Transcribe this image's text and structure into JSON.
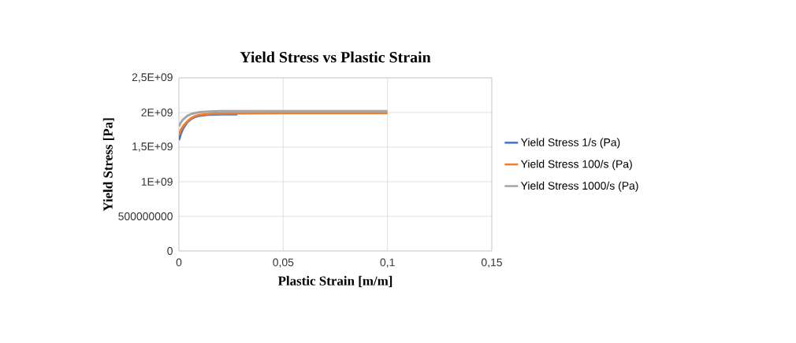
{
  "chart_data": {
    "type": "line",
    "title": "Yield Stress vs Plastic Strain",
    "xlabel": "Plastic Strain [m/m]",
    "ylabel": "Yield Stress [Pa]",
    "xlim": [
      0,
      0.15
    ],
    "xticks": [
      0,
      {
        "value": 0.05,
        "label": "0,05"
      },
      {
        "value": 0.1,
        "label": "0,1"
      },
      {
        "value": 0.15,
        "label": "0,15"
      }
    ],
    "ylim": [
      0,
      2500000000
    ],
    "yticks": [
      0,
      {
        "value": 500000000,
        "label": "500000000"
      },
      {
        "value": 1000000000,
        "label": "1E+09"
      },
      {
        "value": 1500000000,
        "label": "1,5E+09"
      },
      {
        "value": 2000000000,
        "label": "2E+09"
      },
      {
        "value": 2500000000,
        "label": "2,5E+09"
      }
    ],
    "grid": true,
    "legend": "right",
    "series": [
      {
        "name": "Yield Stress 1/s (Pa)",
        "color": "#4472c4",
        "x": [
          0,
          0.001,
          0.002,
          0.004,
          0.006,
          0.008,
          0.01,
          0.015,
          0.02,
          0.028
        ],
        "values": [
          1600000000,
          1700000000,
          1770000000,
          1860000000,
          1910000000,
          1940000000,
          1955000000,
          1970000000,
          1975000000,
          1975000000
        ]
      },
      {
        "name": "Yield Stress 100/s (Pa)",
        "color": "#ed7d31",
        "x": [
          0,
          0.001,
          0.002,
          0.004,
          0.006,
          0.008,
          0.01,
          0.015,
          0.02,
          0.05,
          0.1
        ],
        "values": [
          1680000000,
          1750000000,
          1800000000,
          1870000000,
          1920000000,
          1950000000,
          1965000000,
          1980000000,
          1985000000,
          1990000000,
          1990000000
        ]
      },
      {
        "name": "Yield Stress 1000/s (Pa)",
        "color": "#a5a5a5",
        "x": [
          0,
          0.001,
          0.002,
          0.004,
          0.006,
          0.008,
          0.01,
          0.015,
          0.02,
          0.05,
          0.1
        ],
        "values": [
          1800000000,
          1860000000,
          1900000000,
          1950000000,
          1980000000,
          1995000000,
          2005000000,
          2015000000,
          2020000000,
          2020000000,
          2020000000
        ]
      }
    ]
  }
}
